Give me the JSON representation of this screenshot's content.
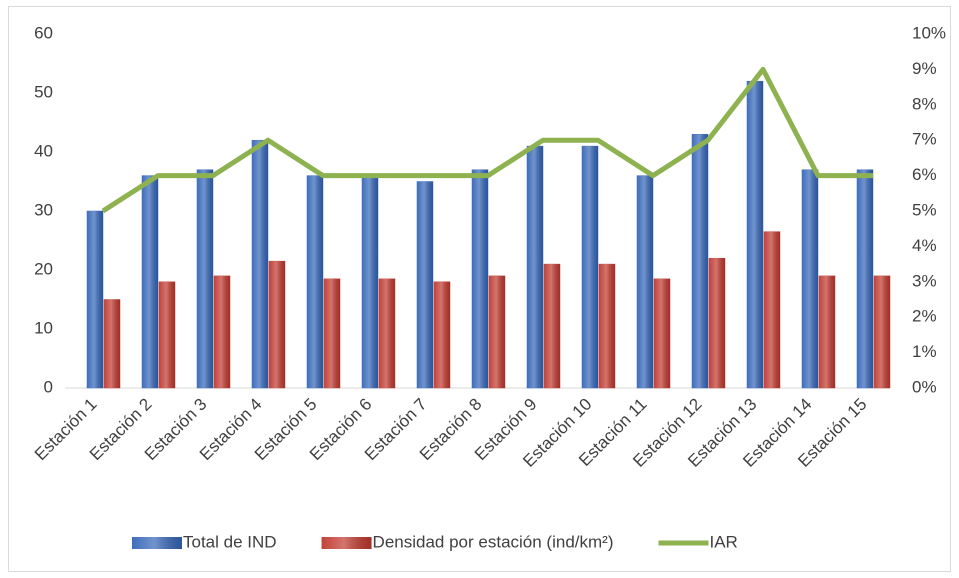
{
  "chart_data": {
    "type": "bar",
    "categories": [
      "Estación 1",
      "Estación 2",
      "Estación 3",
      "Estación 4",
      "Estación 5",
      "Estación 6",
      "Estación 7",
      "Estación 8",
      "Estación 9",
      "Estación 10",
      "Estación 11",
      "Estación 12",
      "Estación 13",
      "Estación 14",
      "Estación 15"
    ],
    "series": [
      {
        "name": "Total de IND",
        "type": "bar",
        "color": "#3566b8",
        "values": [
          30,
          36,
          37,
          42,
          36,
          36,
          35,
          37,
          41,
          41,
          36,
          43,
          52,
          37,
          37
        ]
      },
      {
        "name": "Densidad por estación (ind/km²)",
        "type": "bar",
        "color": "#c0392f",
        "values": [
          15,
          18,
          19,
          21.5,
          18.5,
          18.5,
          18,
          19,
          21,
          21,
          18.5,
          22,
          26.5,
          19,
          19
        ]
      },
      {
        "name": "IAR",
        "type": "line",
        "axis": "y2",
        "color": "#8db24f",
        "values": [
          5,
          6,
          6,
          7,
          6,
          6,
          6,
          6,
          7,
          7,
          6,
          7,
          9,
          6,
          6
        ]
      }
    ],
    "ylim": [
      0,
      60
    ],
    "yticks": [
      0,
      10,
      20,
      30,
      40,
      50,
      60
    ],
    "y2lim": [
      0,
      10
    ],
    "y2ticks": [
      {
        "value": 0,
        "label": "0%"
      },
      {
        "value": 1,
        "label": "1%"
      },
      {
        "value": 2,
        "label": "2%"
      },
      {
        "value": 3,
        "label": "3%"
      },
      {
        "value": 4,
        "label": "4%"
      },
      {
        "value": 5,
        "label": "5%"
      },
      {
        "value": 6,
        "label": "6%"
      },
      {
        "value": 7,
        "label": "7%"
      },
      {
        "value": 8,
        "label": "8%"
      },
      {
        "value": 9,
        "label": "9%"
      },
      {
        "value": 10,
        "label": "10%"
      }
    ],
    "grid": false,
    "legend": "bottom"
  }
}
